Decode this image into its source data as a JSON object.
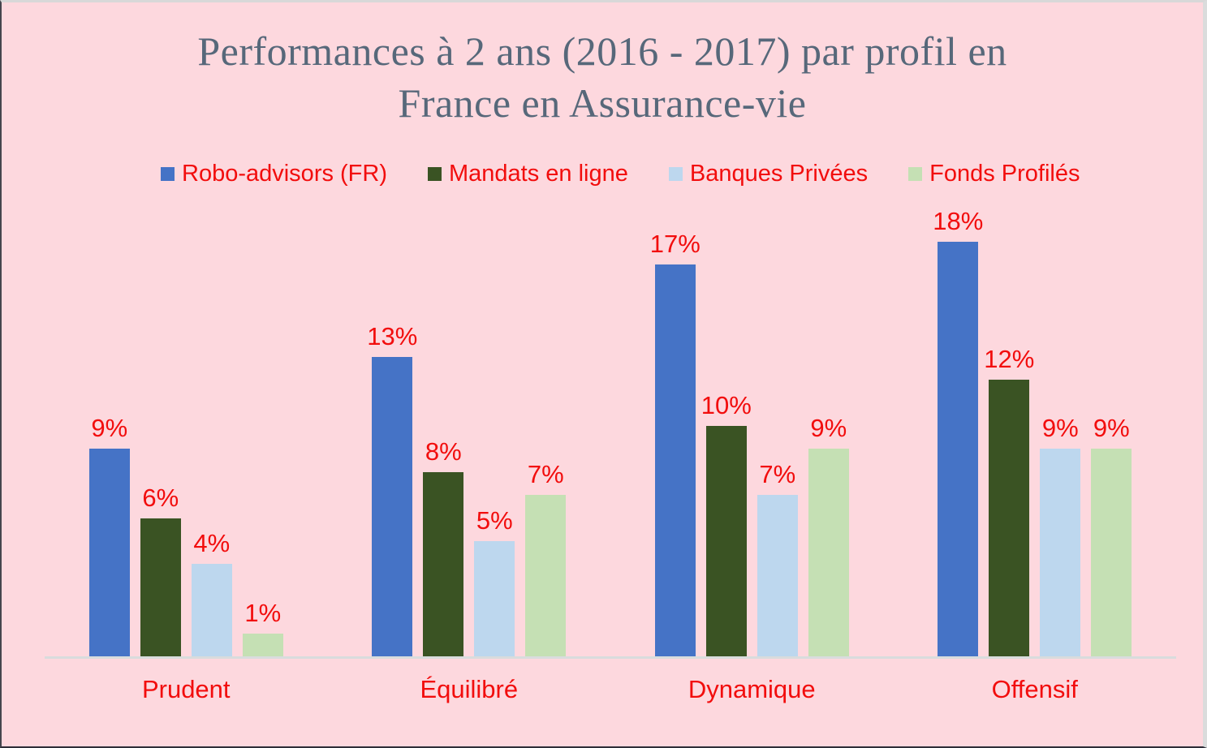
{
  "chart_data": {
    "type": "bar",
    "title": "Performances à 2 ans (2016 - 2017) par profil en France en Assurance-vie",
    "title_lines": [
      "Performances à 2 ans (2016 - 2017) par profil en",
      "France en Assurance-vie"
    ],
    "categories": [
      "Prudent",
      "Équilibré",
      "Dynamique",
      "Offensif"
    ],
    "series": [
      {
        "name": "Robo-advisors (FR)",
        "color": "#4573c6",
        "values": [
          9,
          13,
          17,
          18
        ]
      },
      {
        "name": "Mandats en ligne",
        "color": "#3a5323",
        "values": [
          6,
          8,
          10,
          12
        ]
      },
      {
        "name": "Banques Privées",
        "color": "#bdd7ee",
        "values": [
          4,
          5,
          7,
          9
        ]
      },
      {
        "name": "Fonds Profilés",
        "color": "#c5e0b4",
        "values": [
          1,
          7,
          9,
          9
        ]
      }
    ],
    "value_suffix": "%",
    "data_labels": true,
    "legend_position": "top",
    "grid": false,
    "ylim": [
      0,
      18
    ],
    "y_axis_visible": false,
    "x_axis_visible": true
  },
  "styles": {
    "background": "#fdd8de",
    "label_color": "#f20d0d",
    "title_color": "#57687a",
    "axis_line_color": "#d9dcdd"
  }
}
